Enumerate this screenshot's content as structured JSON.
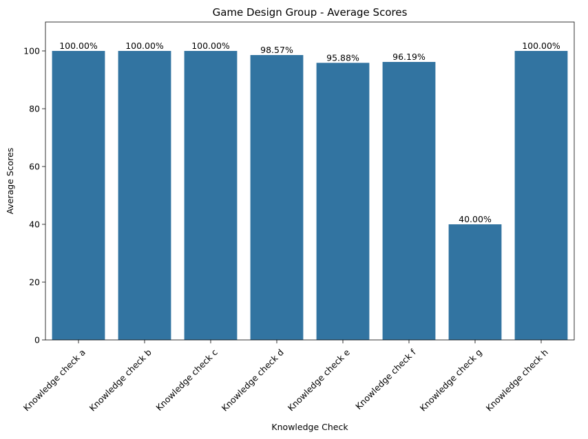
{
  "chart_data": {
    "type": "bar",
    "title": "Game Design Group - Average Scores",
    "xlabel": "Knowledge Check",
    "ylabel": "Average Scores",
    "categories": [
      "Knowledge check a",
      "Knowledge check b",
      "Knowledge check c",
      "Knowledge check d",
      "Knowledge check e",
      "Knowledge check f",
      "Knowledge check g",
      "Knowledge check h"
    ],
    "values": [
      100.0,
      100.0,
      100.0,
      98.57,
      95.88,
      96.19,
      40.0,
      100.0
    ],
    "data_labels": [
      "100.00%",
      "100.00%",
      "100.00%",
      "98.57%",
      "95.88%",
      "96.19%",
      "40.00%",
      "100.00%"
    ],
    "yticks": [
      0,
      20,
      40,
      60,
      80,
      100
    ],
    "ytick_labels": [
      "0",
      "20",
      "40",
      "60",
      "80",
      "100"
    ],
    "ylim": [
      0,
      110
    ],
    "grid": false,
    "bar_color": "#3274a1",
    "x_tick_rotation": 45
  }
}
